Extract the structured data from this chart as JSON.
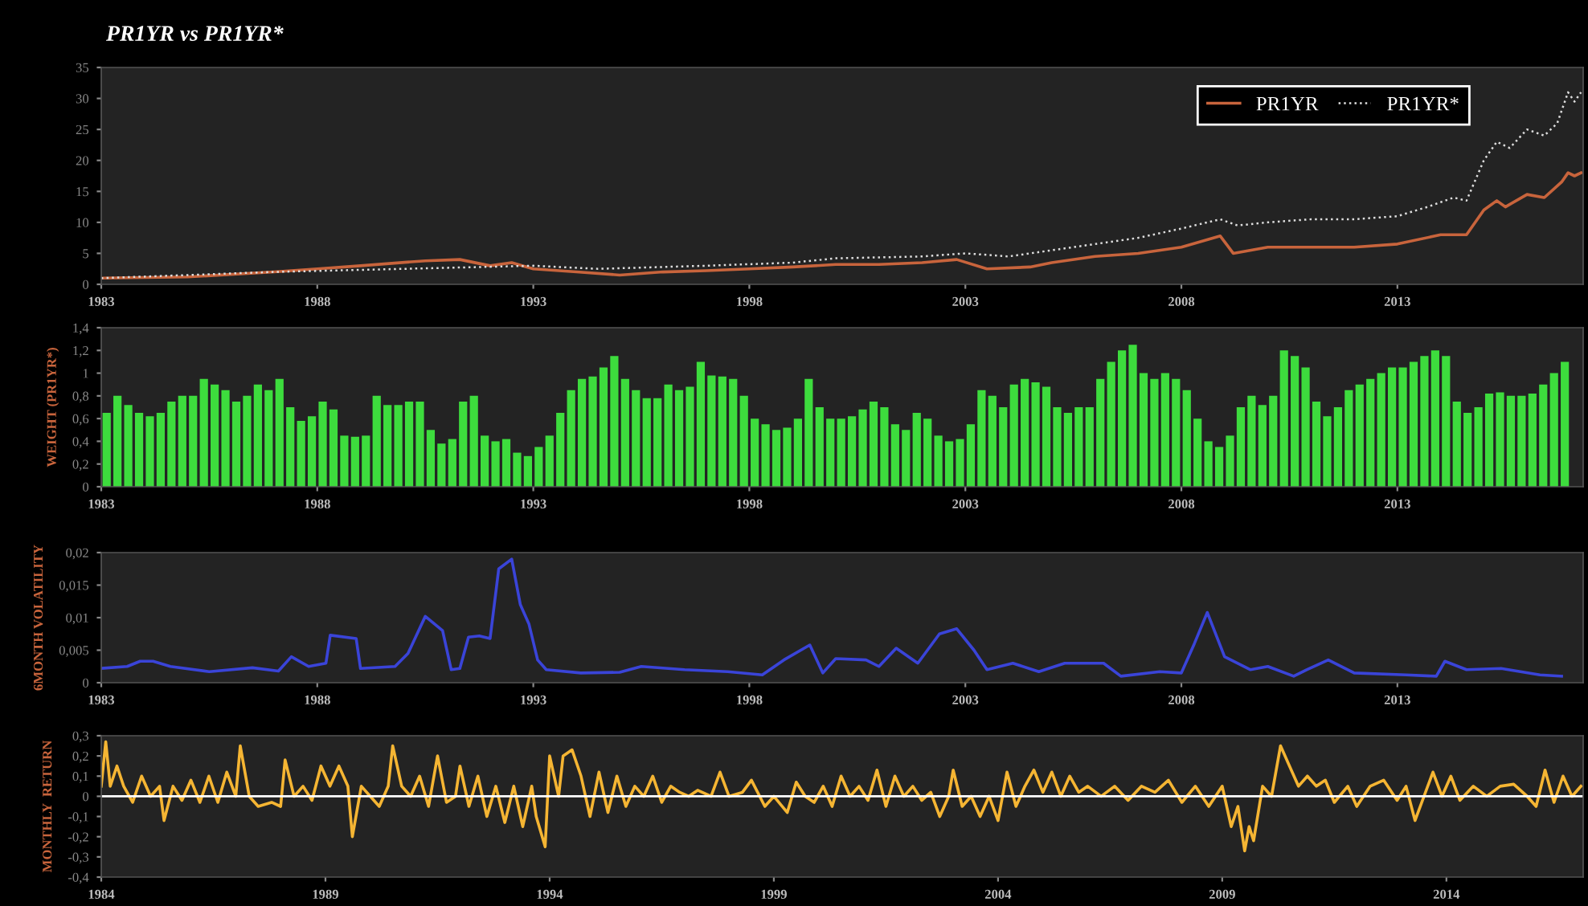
{
  "chart_data": [
    {
      "type": "line",
      "title": "PR1YR vs PR1YR*",
      "xlim": [
        1983,
        2017.3
      ],
      "xticks": [
        1983,
        1988,
        1993,
        1998,
        2003,
        2008,
        2013
      ],
      "ylim": [
        0,
        35
      ],
      "yticks": [
        0,
        5,
        10,
        15,
        20,
        25,
        30,
        35
      ],
      "grid": false,
      "legend": "top right",
      "series": [
        {
          "name": "PR1YR",
          "color": "#c8643c",
          "line_style": "solid",
          "x": [
            1983,
            1985,
            1987,
            1988,
            1989,
            1990.5,
            1991.3,
            1992,
            1992.5,
            1993,
            1994,
            1995,
            1996,
            1997,
            1998,
            1999,
            2000,
            2001,
            2002,
            2002.8,
            2003.5,
            2004.5,
            2005,
            2006,
            2007,
            2008,
            2008.9,
            2009.2,
            2010,
            2011,
            2012,
            2013,
            2014,
            2014.6,
            2015,
            2015.3,
            2015.5,
            2016,
            2016.4,
            2016.8,
            2016.95,
            2017.1,
            2017.25
          ],
          "values": [
            1,
            1.2,
            2,
            2.5,
            3,
            3.8,
            4,
            3,
            3.5,
            2.5,
            2,
            1.5,
            2,
            2.2,
            2.5,
            2.8,
            3.2,
            3.2,
            3.5,
            4,
            2.5,
            2.8,
            3.5,
            4.5,
            5,
            6,
            7.8,
            5,
            6,
            6,
            6,
            6.5,
            8,
            8,
            12,
            13.5,
            12.5,
            14.5,
            14,
            16.5,
            18,
            17.5,
            18
          ]
        },
        {
          "name": "PR1YR*",
          "color": "#dddddd",
          "line_style": "dotted",
          "x": [
            1983,
            1987,
            1990,
            1993,
            1994.5,
            1997,
            1999,
            2000,
            2002,
            2003,
            2004,
            2005,
            2006,
            2007,
            2008,
            2008.9,
            2009.3,
            2010,
            2011,
            2012,
            2013,
            2013.7,
            2014.3,
            2014.6,
            2015,
            2015.3,
            2015.6,
            2016,
            2016.4,
            2016.7,
            2016.95,
            2017.1,
            2017.25
          ],
          "values": [
            1,
            2,
            2.5,
            3,
            2.5,
            3,
            3.5,
            4.2,
            4.5,
            5,
            4.5,
            5.5,
            6.5,
            7.5,
            9,
            10.5,
            9.5,
            10,
            10.5,
            10.5,
            11,
            12.5,
            14,
            13.5,
            20,
            23,
            22,
            25,
            24,
            26,
            31,
            29.5,
            31
          ]
        }
      ]
    },
    {
      "type": "bar",
      "ylabel": "WEIGHT (PR1YR*)",
      "xlim": [
        1983,
        2017.3
      ],
      "xticks": [
        1983,
        1988,
        1993,
        1998,
        2003,
        2008,
        2013
      ],
      "ylim": [
        0,
        1.4
      ],
      "yticks": [
        0,
        {
          "value": 0.2,
          "label": "0,2"
        },
        {
          "value": 0.4,
          "label": "0,4"
        },
        {
          "value": 0.6,
          "label": "0,6"
        },
        {
          "value": 0.8,
          "label": "0,8"
        },
        1,
        {
          "value": 1.2,
          "label": "1,2"
        },
        {
          "value": 1.4,
          "label": "1,4"
        }
      ],
      "grid": false,
      "series": [
        {
          "color": "#3ddc3d",
          "x": [
            1983.125,
            1983.375,
            1983.625,
            1983.875,
            1984.125,
            1984.375,
            1984.625,
            1984.875,
            1985.125,
            1985.375,
            1985.625,
            1985.875,
            1986.125,
            1986.375,
            1986.625,
            1986.875,
            1987.125,
            1987.375,
            1987.625,
            1987.875,
            1988.125,
            1988.375,
            1988.625,
            1988.875,
            1989.125,
            1989.375,
            1989.625,
            1989.875,
            1990.125,
            1990.375,
            1990.625,
            1990.875,
            1991.125,
            1991.375,
            1991.625,
            1991.875,
            1992.125,
            1992.375,
            1992.625,
            1992.875,
            1993.125,
            1993.375,
            1993.625,
            1993.875,
            1994.125,
            1994.375,
            1994.625,
            1994.875,
            1995.125,
            1995.375,
            1995.625,
            1995.875,
            1996.125,
            1996.375,
            1996.625,
            1996.875,
            1997.125,
            1997.375,
            1997.625,
            1997.875,
            1998.125,
            1998.375,
            1998.625,
            1998.875,
            1999.125,
            1999.375,
            1999.625,
            1999.875,
            2000.125,
            2000.375,
            2000.625,
            2000.875,
            2001.125,
            2001.375,
            2001.625,
            2001.875,
            2002.125,
            2002.375,
            2002.625,
            2002.875,
            2003.125,
            2003.375,
            2003.625,
            2003.875,
            2004.125,
            2004.375,
            2004.625,
            2004.875,
            2005.125,
            2005.375,
            2005.625,
            2005.875,
            2006.125,
            2006.375,
            2006.625,
            2006.875,
            2007.125,
            2007.375,
            2007.625,
            2007.875,
            2008.125,
            2008.375,
            2008.625,
            2008.875,
            2009.125,
            2009.375,
            2009.625,
            2009.875,
            2010.125,
            2010.375,
            2010.625,
            2010.875,
            2011.125,
            2011.375,
            2011.625,
            2011.875,
            2012.125,
            2012.375,
            2012.625,
            2012.875,
            2013.125,
            2013.375,
            2013.625,
            2013.875,
            2014.125,
            2014.375,
            2014.625,
            2014.875,
            2015.125,
            2015.375,
            2015.625,
            2015.875,
            2016.125,
            2016.375,
            2016.625,
            2016.875
          ],
          "values": [
            0.65,
            0.8,
            0.72,
            0.65,
            0.62,
            0.65,
            0.75,
            0.8,
            0.8,
            0.95,
            0.9,
            0.85,
            0.75,
            0.8,
            0.9,
            0.85,
            0.95,
            0.7,
            0.58,
            0.62,
            0.75,
            0.68,
            0.45,
            0.44,
            0.45,
            0.8,
            0.72,
            0.72,
            0.75,
            0.75,
            0.5,
            0.38,
            0.42,
            0.75,
            0.8,
            0.45,
            0.4,
            0.42,
            0.3,
            0.27,
            0.35,
            0.45,
            0.65,
            0.85,
            0.95,
            0.97,
            1.05,
            1.15,
            0.95,
            0.85,
            0.78,
            0.78,
            0.9,
            0.85,
            0.88,
            1.1,
            0.98,
            0.97,
            0.95,
            0.8,
            0.6,
            0.55,
            0.5,
            0.52,
            0.6,
            0.95,
            0.7,
            0.6,
            0.6,
            0.62,
            0.68,
            0.75,
            0.7,
            0.55,
            0.5,
            0.65,
            0.6,
            0.45,
            0.4,
            0.42,
            0.55,
            0.85,
            0.8,
            0.7,
            0.9,
            0.95,
            0.92,
            0.88,
            0.7,
            0.65,
            0.7,
            0.7,
            0.95,
            1.1,
            1.2,
            1.25,
            1.0,
            0.95,
            1.0,
            0.95,
            0.85,
            0.6,
            0.4,
            0.35,
            0.45,
            0.7,
            0.8,
            0.72,
            0.8,
            1.2,
            1.15,
            1.05,
            0.75,
            0.62,
            0.7,
            0.85,
            0.9,
            0.95,
            1.0,
            1.05,
            1.05,
            1.1,
            1.15,
            1.2,
            1.15,
            0.75,
            0.65,
            0.7,
            0.82,
            0.83,
            0.8,
            0.8,
            0.82,
            0.9,
            1.0,
            1.1
          ]
        }
      ]
    },
    {
      "type": "line",
      "ylabel": "6MONTH VOLATILITY",
      "xlim": [
        1983,
        2017.3
      ],
      "xticks": [
        1983,
        1988,
        1993,
        1998,
        2003,
        2008,
        2013
      ],
      "ylim": [
        0,
        0.02
      ],
      "yticks": [
        0,
        {
          "value": 0.005,
          "label": "0,005"
        },
        {
          "value": 0.01,
          "label": "0,01"
        },
        {
          "value": 0.015,
          "label": "0,015"
        },
        {
          "value": 0.02,
          "label": "0,02"
        }
      ],
      "grid": false,
      "series": [
        {
          "color": "#3a44d8",
          "line_style": "solid",
          "x": [
            1983,
            1983.6,
            1983.9,
            1984.2,
            1984.6,
            1985.5,
            1986.5,
            1987.1,
            1987.4,
            1987.8,
            1988.2,
            1988.3,
            1988.9,
            1989.0,
            1989.8,
            1990.1,
            1990.5,
            1990.9,
            1991.1,
            1991.3,
            1991.5,
            1991.75,
            1992.0,
            1992.2,
            1992.5,
            1992.7,
            1992.9,
            1993.1,
            1993.3,
            1994.1,
            1995.0,
            1995.5,
            1996.5,
            1997.5,
            1998.3,
            1998.8,
            1999.4,
            1999.7,
            2000.0,
            2000.7,
            2001.0,
            2001.4,
            2001.9,
            2002.4,
            2002.8,
            2003.2,
            2003.5,
            2004.1,
            2004.7,
            2005.3,
            2006.2,
            2006.6,
            2007.5,
            2008.0,
            2008.3,
            2008.6,
            2009.0,
            2009.6,
            2010.0,
            2010.6,
            2010.9,
            2011.4,
            2012.0,
            2013.2,
            2013.9,
            2014.1,
            2014.6,
            2015.4,
            2016.3,
            2016.8
          ],
          "values": [
            0.0022,
            0.0025,
            0.0033,
            0.0033,
            0.0025,
            0.0017,
            0.0023,
            0.0018,
            0.004,
            0.0025,
            0.003,
            0.0073,
            0.0068,
            0.0022,
            0.0025,
            0.0045,
            0.0102,
            0.008,
            0.002,
            0.0022,
            0.007,
            0.0072,
            0.0068,
            0.0175,
            0.019,
            0.012,
            0.009,
            0.0035,
            0.002,
            0.0015,
            0.0016,
            0.0025,
            0.002,
            0.0017,
            0.0012,
            0.0035,
            0.0058,
            0.0015,
            0.0037,
            0.0035,
            0.0025,
            0.0053,
            0.003,
            0.0075,
            0.0083,
            0.005,
            0.002,
            0.003,
            0.0017,
            0.003,
            0.003,
            0.001,
            0.0017,
            0.0015,
            0.006,
            0.0108,
            0.004,
            0.002,
            0.0025,
            0.001,
            0.002,
            0.0035,
            0.0015,
            0.0012,
            0.001,
            0.0033,
            0.002,
            0.0022,
            0.0012,
            0.001
          ]
        }
      ]
    },
    {
      "type": "line",
      "ylabel": "MONTHLY  RETURN",
      "xlim": [
        1984,
        2017.05
      ],
      "xticks": [
        1984,
        1989,
        1994,
        1999,
        2004,
        2009,
        2014
      ],
      "ylim": [
        -0.4,
        0.3
      ],
      "yticks": [
        {
          "value": -0.4,
          "label": "-0,4"
        },
        {
          "value": -0.3,
          "label": "-0,3"
        },
        {
          "value": -0.2,
          "label": "-0,2"
        },
        {
          "value": -0.1,
          "label": "-0,1"
        },
        0,
        {
          "value": 0.1,
          "label": "0,1"
        },
        {
          "value": 0.2,
          "label": "0,2"
        },
        {
          "value": 0.3,
          "label": "0,3"
        }
      ],
      "grid": false,
      "ref_lines": [
        {
          "axis": "y",
          "value": 0,
          "color": "#ffffff"
        }
      ],
      "series": [
        {
          "color": "#f5b533",
          "line_style": "solid",
          "x": [
            1984.0,
            1984.1,
            1984.2,
            1984.35,
            1984.5,
            1984.7,
            1984.9,
            1985.1,
            1985.3,
            1985.4,
            1985.6,
            1985.8,
            1986.0,
            1986.2,
            1986.4,
            1986.6,
            1986.8,
            1987.0,
            1987.1,
            1987.3,
            1987.5,
            1987.8,
            1988.0,
            1988.1,
            1988.3,
            1988.5,
            1988.7,
            1988.9,
            1989.1,
            1989.3,
            1989.5,
            1989.6,
            1989.8,
            1990.0,
            1990.2,
            1990.4,
            1990.5,
            1990.7,
            1990.9,
            1991.1,
            1991.3,
            1991.5,
            1991.7,
            1991.9,
            1992.0,
            1992.2,
            1992.4,
            1992.6,
            1992.8,
            1993.0,
            1993.2,
            1993.4,
            1993.6,
            1993.7,
            1993.9,
            1994.0,
            1994.2,
            1994.3,
            1994.5,
            1994.7,
            1994.9,
            1995.1,
            1995.3,
            1995.5,
            1995.7,
            1995.9,
            1996.1,
            1996.3,
            1996.5,
            1996.7,
            1996.9,
            1997.1,
            1997.3,
            1997.6,
            1997.8,
            1998.0,
            1998.3,
            1998.5,
            1998.8,
            1999.0,
            1999.3,
            1999.5,
            1999.7,
            1999.9,
            2000.1,
            2000.3,
            2000.5,
            2000.7,
            2000.9,
            2001.1,
            2001.3,
            2001.5,
            2001.7,
            2001.9,
            2002.1,
            2002.3,
            2002.5,
            2002.7,
            2002.9,
            2003.0,
            2003.2,
            2003.4,
            2003.6,
            2003.8,
            2004.0,
            2004.2,
            2004.4,
            2004.6,
            2004.8,
            2005.0,
            2005.2,
            2005.4,
            2005.6,
            2005.8,
            2006.0,
            2006.3,
            2006.6,
            2006.9,
            2007.2,
            2007.5,
            2007.8,
            2008.1,
            2008.4,
            2008.7,
            2009.0,
            2009.2,
            2009.35,
            2009.5,
            2009.6,
            2009.7,
            2009.9,
            2010.1,
            2010.3,
            2010.5,
            2010.7,
            2010.9,
            2011.1,
            2011.3,
            2011.5,
            2011.8,
            2012.0,
            2012.3,
            2012.6,
            2012.9,
            2013.1,
            2013.3,
            2013.5,
            2013.7,
            2013.9,
            2014.1,
            2014.3,
            2014.6,
            2014.9,
            2015.2,
            2015.5,
            2015.8,
            2016.0,
            2016.2,
            2016.4,
            2016.6,
            2016.8,
            2017.0
          ],
          "values": [
            0.05,
            0.27,
            0.05,
            0.15,
            0.05,
            -0.03,
            0.1,
            0.0,
            0.05,
            -0.12,
            0.05,
            -0.02,
            0.08,
            -0.03,
            0.1,
            -0.03,
            0.12,
            0.0,
            0.25,
            0.0,
            -0.05,
            -0.03,
            -0.05,
            0.18,
            0.0,
            0.05,
            -0.02,
            0.15,
            0.05,
            0.15,
            0.05,
            -0.2,
            0.05,
            0.0,
            -0.05,
            0.05,
            0.25,
            0.05,
            0.0,
            0.1,
            -0.05,
            0.2,
            -0.03,
            0.0,
            0.15,
            -0.05,
            0.1,
            -0.1,
            0.05,
            -0.13,
            0.05,
            -0.15,
            0.05,
            -0.1,
            -0.25,
            0.2,
            0.0,
            0.2,
            0.23,
            0.1,
            -0.1,
            0.12,
            -0.08,
            0.1,
            -0.05,
            0.05,
            0.0,
            0.1,
            -0.03,
            0.05,
            0.02,
            0.0,
            0.03,
            0.0,
            0.12,
            0.0,
            0.02,
            0.08,
            -0.05,
            0.0,
            -0.08,
            0.07,
            0.0,
            -0.03,
            0.05,
            -0.05,
            0.1,
            0.0,
            0.05,
            -0.02,
            0.13,
            -0.05,
            0.1,
            0.0,
            0.05,
            -0.02,
            0.02,
            -0.1,
            0.0,
            0.13,
            -0.05,
            0.0,
            -0.1,
            0.0,
            -0.12,
            0.12,
            -0.05,
            0.05,
            0.13,
            0.02,
            0.12,
            0.0,
            0.1,
            0.02,
            0.05,
            0.0,
            0.05,
            -0.02,
            0.05,
            0.02,
            0.08,
            -0.03,
            0.05,
            -0.05,
            0.05,
            -0.15,
            -0.05,
            -0.27,
            -0.15,
            -0.22,
            0.05,
            0.0,
            0.25,
            0.15,
            0.05,
            0.1,
            0.05,
            0.08,
            -0.03,
            0.05,
            -0.05,
            0.05,
            0.08,
            -0.02,
            0.05,
            -0.12,
            0.0,
            0.12,
            0.0,
            0.1,
            -0.02,
            0.05,
            0.0,
            0.05,
            0.06,
            0.0,
            -0.05,
            0.13,
            -0.03,
            0.1,
            0.0,
            0.05
          ]
        }
      ]
    }
  ]
}
